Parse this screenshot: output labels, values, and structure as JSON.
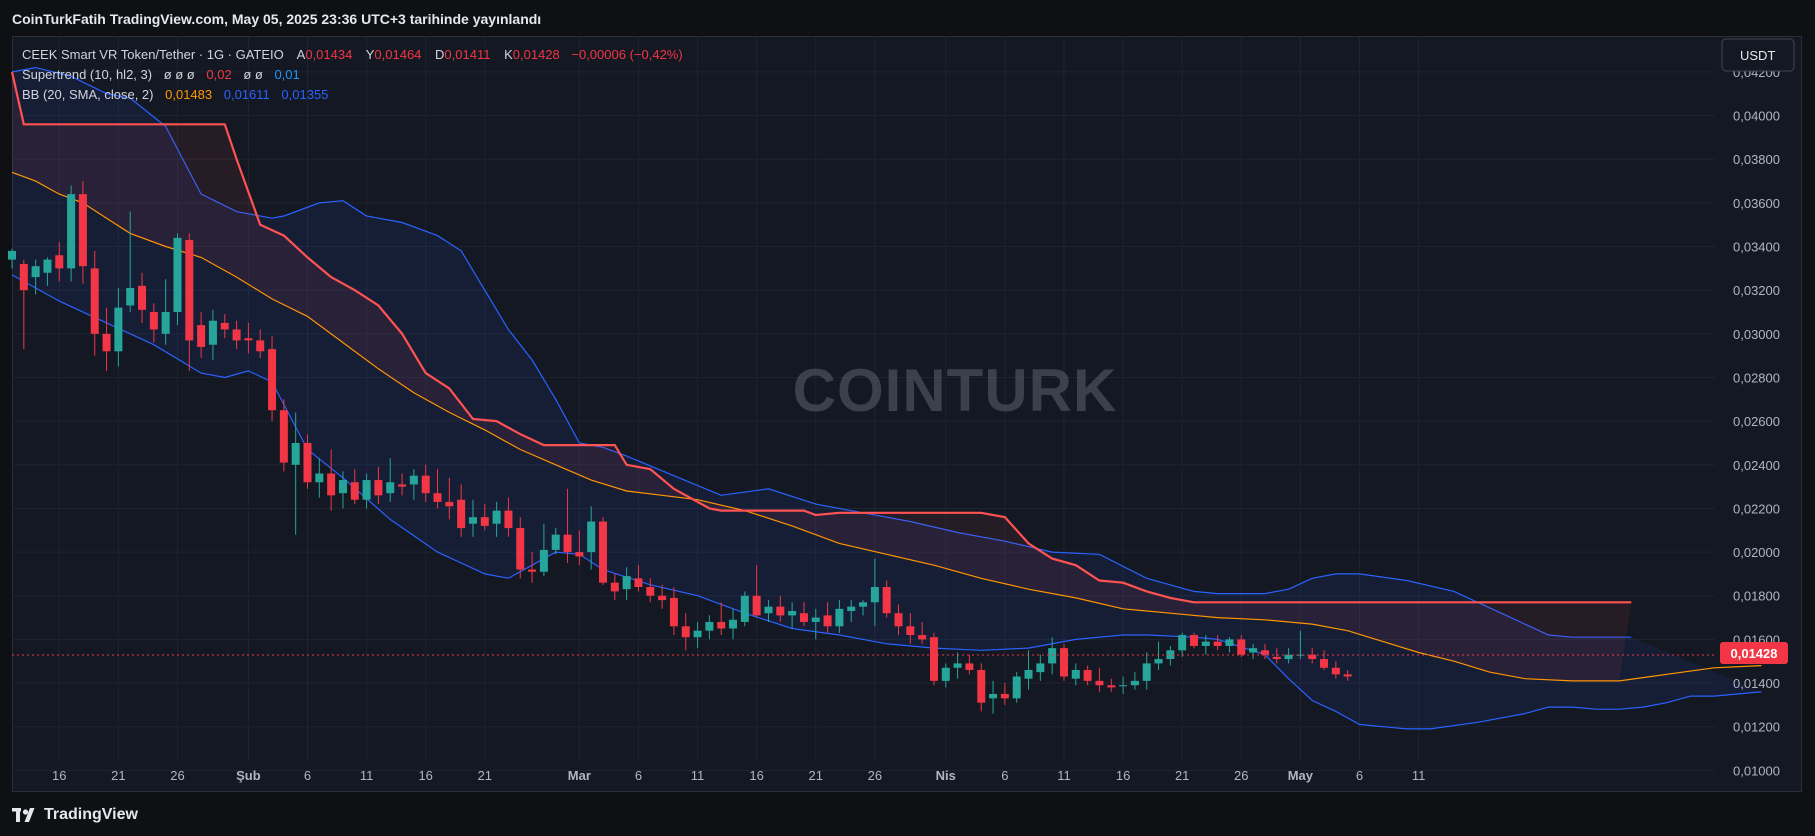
{
  "header": {
    "published_line": "CoinTurkFatih TradingView.com, May 05, 2025 23:36 UTC+3 tarihinde yayınlandı"
  },
  "legend": {
    "symbol": "CEEK Smart VR Token/Tether · 1G · GATEIO",
    "open_label": "A",
    "open": "0,01434",
    "high_label": "Y",
    "high": "0,01464",
    "low_label": "D",
    "low": "0,01411",
    "close_label": "K",
    "close": "0,01428",
    "change": "−0,00006 (−0,42%)",
    "supertrend_label": "Supertrend (10, hl2, 3)",
    "supertrend_values": "ø  ø  ø",
    "supertrend_v1": "0,02",
    "supertrend_values2": "ø  ø",
    "supertrend_v2": "0,01",
    "bb_label": "BB (20, SMA, close, 2)",
    "bb_basis": "0,01483",
    "bb_upper": "0,01611",
    "bb_lower": "0,01355"
  },
  "currency_button": "USDT",
  "watermark": "COINTURK",
  "price_tag": "0,01428",
  "branding": "TradingView",
  "colors": {
    "up": "#26a69a",
    "down": "#f23645",
    "bb_basis": "#ff9800",
    "bb_band": "#2962ff",
    "supertrend": "#ff5252",
    "background": "#141823"
  },
  "chart_data": {
    "type": "candlestick",
    "y_ticks": [
      "0,04200",
      "0,04000",
      "0,03800",
      "0,03600",
      "0,03400",
      "0,03200",
      "0,03000",
      "0,02800",
      "0,02600",
      "0,02400",
      "0,02200",
      "0,02000",
      "0,01800",
      "0,01600",
      "0,01400",
      "0,01200",
      "0,01000"
    ],
    "ylim": [
      0.0091,
      0.0436
    ],
    "x_tick_labels": [
      "16",
      "21",
      "26",
      "Şub",
      "6",
      "11",
      "16",
      "21",
      "Mar",
      "6",
      "11",
      "16",
      "21",
      "26",
      "Nis",
      "6",
      "11",
      "16",
      "21",
      "26",
      "May",
      "6",
      "11"
    ],
    "x_tick_dates": [
      "2025-01-16",
      "2025-01-21",
      "2025-01-26",
      "2025-02-01",
      "2025-02-06",
      "2025-02-11",
      "2025-02-16",
      "2025-02-21",
      "2025-03-01",
      "2025-03-06",
      "2025-03-11",
      "2025-03-16",
      "2025-03-21",
      "2025-03-26",
      "2025-04-01",
      "2025-04-06",
      "2025-04-11",
      "2025-04-16",
      "2025-04-21",
      "2025-04-26",
      "2025-05-01",
      "2025-05-06",
      "2025-05-11"
    ],
    "first_date": "2025-01-12",
    "last_date": "2025-05-05",
    "candles_ohlc": [
      [
        0.0334,
        0.0339,
        0.033,
        0.0338
      ],
      [
        0.0332,
        0.0334,
        0.0293,
        0.032
      ],
      [
        0.0326,
        0.0334,
        0.0318,
        0.0331
      ],
      [
        0.0328,
        0.0335,
        0.0322,
        0.0334
      ],
      [
        0.0336,
        0.0342,
        0.0324,
        0.033
      ],
      [
        0.033,
        0.0368,
        0.0324,
        0.0364
      ],
      [
        0.0364,
        0.037,
        0.0323,
        0.0331
      ],
      [
        0.033,
        0.0338,
        0.029,
        0.03
      ],
      [
        0.03,
        0.0312,
        0.0283,
        0.0292
      ],
      [
        0.0292,
        0.0321,
        0.0285,
        0.0312
      ],
      [
        0.0313,
        0.0356,
        0.031,
        0.0321
      ],
      [
        0.0322,
        0.0328,
        0.0305,
        0.0311
      ],
      [
        0.031,
        0.0314,
        0.0296,
        0.0302
      ],
      [
        0.03,
        0.0325,
        0.0295,
        0.031
      ],
      [
        0.031,
        0.0346,
        0.0304,
        0.0344
      ],
      [
        0.0343,
        0.0346,
        0.0283,
        0.0297
      ],
      [
        0.0304,
        0.031,
        0.0289,
        0.0294
      ],
      [
        0.0295,
        0.0311,
        0.0288,
        0.0306
      ],
      [
        0.0305,
        0.0309,
        0.0298,
        0.0302
      ],
      [
        0.0302,
        0.0306,
        0.0293,
        0.0297
      ],
      [
        0.0298,
        0.0305,
        0.0291,
        0.0297
      ],
      [
        0.0297,
        0.0302,
        0.0289,
        0.0292
      ],
      [
        0.0293,
        0.0299,
        0.026,
        0.0265
      ],
      [
        0.0265,
        0.027,
        0.0237,
        0.0241
      ],
      [
        0.024,
        0.0264,
        0.0208,
        0.025
      ],
      [
        0.025,
        0.0254,
        0.0229,
        0.0232
      ],
      [
        0.0232,
        0.0243,
        0.0225,
        0.0236
      ],
      [
        0.0236,
        0.0247,
        0.0219,
        0.0226
      ],
      [
        0.0227,
        0.0237,
        0.022,
        0.0233
      ],
      [
        0.0232,
        0.0238,
        0.0222,
        0.0224
      ],
      [
        0.0224,
        0.0236,
        0.022,
        0.0233
      ],
      [
        0.0233,
        0.0239,
        0.0222,
        0.0226
      ],
      [
        0.0227,
        0.0243,
        0.0223,
        0.0232
      ],
      [
        0.0231,
        0.0236,
        0.0226,
        0.023
      ],
      [
        0.0231,
        0.0238,
        0.0224,
        0.0235
      ],
      [
        0.0235,
        0.024,
        0.0223,
        0.0227
      ],
      [
        0.0227,
        0.0238,
        0.022,
        0.0223
      ],
      [
        0.0223,
        0.0234,
        0.0215,
        0.0221
      ],
      [
        0.0224,
        0.0231,
        0.0207,
        0.0211
      ],
      [
        0.0213,
        0.0224,
        0.0207,
        0.0216
      ],
      [
        0.0216,
        0.0222,
        0.021,
        0.0212
      ],
      [
        0.0213,
        0.0223,
        0.0207,
        0.0219
      ],
      [
        0.0219,
        0.0225,
        0.0207,
        0.0211
      ],
      [
        0.0211,
        0.0216,
        0.0188,
        0.0192
      ],
      [
        0.0192,
        0.02,
        0.0186,
        0.0191
      ],
      [
        0.0191,
        0.0213,
        0.0189,
        0.0201
      ],
      [
        0.0201,
        0.0211,
        0.0199,
        0.0208
      ],
      [
        0.0208,
        0.0229,
        0.0195,
        0.02
      ],
      [
        0.02,
        0.021,
        0.0194,
        0.0198
      ],
      [
        0.02,
        0.0221,
        0.0192,
        0.0214
      ],
      [
        0.0214,
        0.0216,
        0.0185,
        0.0186
      ],
      [
        0.0186,
        0.019,
        0.0178,
        0.0182
      ],
      [
        0.0183,
        0.0193,
        0.0178,
        0.0189
      ],
      [
        0.0188,
        0.0194,
        0.0182,
        0.0184
      ],
      [
        0.0184,
        0.0188,
        0.0177,
        0.018
      ],
      [
        0.018,
        0.0185,
        0.0174,
        0.0178
      ],
      [
        0.0179,
        0.0184,
        0.0162,
        0.0166
      ],
      [
        0.0166,
        0.0172,
        0.0155,
        0.0161
      ],
      [
        0.0161,
        0.0168,
        0.0156,
        0.0164
      ],
      [
        0.0164,
        0.0171,
        0.016,
        0.0168
      ],
      [
        0.0168,
        0.0177,
        0.0162,
        0.0165
      ],
      [
        0.0165,
        0.0174,
        0.016,
        0.0169
      ],
      [
        0.0168,
        0.0182,
        0.0166,
        0.018
      ],
      [
        0.018,
        0.0194,
        0.017,
        0.0171
      ],
      [
        0.0172,
        0.0178,
        0.0168,
        0.0175
      ],
      [
        0.0175,
        0.018,
        0.0168,
        0.0171
      ],
      [
        0.0171,
        0.0177,
        0.0165,
        0.0173
      ],
      [
        0.0172,
        0.0177,
        0.0166,
        0.0168
      ],
      [
        0.0168,
        0.0174,
        0.016,
        0.017
      ],
      [
        0.0171,
        0.0177,
        0.0163,
        0.0166
      ],
      [
        0.0166,
        0.0178,
        0.0163,
        0.0174
      ],
      [
        0.0173,
        0.0178,
        0.0168,
        0.0175
      ],
      [
        0.0175,
        0.0178,
        0.0171,
        0.0177
      ],
      [
        0.0177,
        0.0197,
        0.0166,
        0.0184
      ],
      [
        0.0184,
        0.0187,
        0.017,
        0.0172
      ],
      [
        0.0172,
        0.0176,
        0.0162,
        0.0166
      ],
      [
        0.0166,
        0.0172,
        0.0158,
        0.0162
      ],
      [
        0.0162,
        0.0168,
        0.0158,
        0.016
      ],
      [
        0.0161,
        0.0163,
        0.0139,
        0.0141
      ],
      [
        0.0141,
        0.0149,
        0.0138,
        0.0147
      ],
      [
        0.0147,
        0.0154,
        0.0142,
        0.0149
      ],
      [
        0.0149,
        0.0153,
        0.0144,
        0.0146
      ],
      [
        0.0146,
        0.0149,
        0.0127,
        0.0131
      ],
      [
        0.0133,
        0.0141,
        0.0126,
        0.0135
      ],
      [
        0.0135,
        0.014,
        0.013,
        0.0133
      ],
      [
        0.0133,
        0.0145,
        0.0131,
        0.0143
      ],
      [
        0.0142,
        0.0155,
        0.0137,
        0.0146
      ],
      [
        0.0145,
        0.0153,
        0.0141,
        0.0149
      ],
      [
        0.0149,
        0.0161,
        0.0144,
        0.0156
      ],
      [
        0.0156,
        0.0158,
        0.0141,
        0.0143
      ],
      [
        0.0142,
        0.0149,
        0.0139,
        0.0146
      ],
      [
        0.0146,
        0.0148,
        0.0139,
        0.0141
      ],
      [
        0.0141,
        0.0147,
        0.0136,
        0.0139
      ],
      [
        0.0139,
        0.0142,
        0.0136,
        0.0138
      ],
      [
        0.0139,
        0.0143,
        0.0135,
        0.0139
      ],
      [
        0.0139,
        0.0145,
        0.0137,
        0.0141
      ],
      [
        0.0141,
        0.0154,
        0.0137,
        0.0149
      ],
      [
        0.0149,
        0.0159,
        0.0146,
        0.0151
      ],
      [
        0.0151,
        0.0157,
        0.0148,
        0.0155
      ],
      [
        0.0155,
        0.0163,
        0.0152,
        0.0162
      ],
      [
        0.0162,
        0.0163,
        0.0156,
        0.0157
      ],
      [
        0.0157,
        0.0162,
        0.0153,
        0.0159
      ],
      [
        0.0159,
        0.0162,
        0.0155,
        0.0157
      ],
      [
        0.0157,
        0.0161,
        0.0154,
        0.016
      ],
      [
        0.016,
        0.0162,
        0.0152,
        0.0153
      ],
      [
        0.0154,
        0.0158,
        0.0151,
        0.0156
      ],
      [
        0.0155,
        0.0158,
        0.0151,
        0.0153
      ],
      [
        0.0152,
        0.0156,
        0.0149,
        0.0151
      ],
      [
        0.0151,
        0.0156,
        0.0149,
        0.0153
      ],
      [
        0.0153,
        0.0164,
        0.0151,
        0.0153
      ],
      [
        0.0153,
        0.0156,
        0.0149,
        0.0151
      ],
      [
        0.0151,
        0.0155,
        0.0146,
        0.0147
      ],
      [
        0.0147,
        0.015,
        0.0142,
        0.0144
      ],
      [
        0.0144,
        0.0146,
        0.0141,
        0.0143
      ]
    ],
    "bb_upper": [
      [
        0,
        0.042
      ],
      [
        2,
        0.0422
      ],
      [
        5,
        0.0418
      ],
      [
        8,
        0.041
      ],
      [
        10,
        0.0408
      ],
      [
        13,
        0.0395
      ],
      [
        16,
        0.0364
      ],
      [
        19,
        0.0356
      ],
      [
        22,
        0.0353
      ],
      [
        23,
        0.0354
      ],
      [
        26,
        0.036
      ],
      [
        28,
        0.0361
      ],
      [
        30,
        0.0354
      ],
      [
        33,
        0.0351
      ],
      [
        36,
        0.0345
      ],
      [
        38,
        0.0338
      ],
      [
        40,
        0.032
      ],
      [
        42,
        0.0302
      ],
      [
        44,
        0.0288
      ],
      [
        46,
        0.027
      ],
      [
        48,
        0.025
      ],
      [
        50,
        0.0248
      ],
      [
        52,
        0.0244
      ],
      [
        56,
        0.0235
      ],
      [
        60,
        0.0226
      ],
      [
        64,
        0.0229
      ],
      [
        68,
        0.0222
      ],
      [
        72,
        0.0218
      ],
      [
        76,
        0.0214
      ],
      [
        80,
        0.0209
      ],
      [
        84,
        0.0205
      ],
      [
        88,
        0.02
      ],
      [
        92,
        0.0199
      ],
      [
        96,
        0.0188
      ],
      [
        100,
        0.0182
      ],
      [
        102,
        0.0181
      ],
      [
        106,
        0.0181
      ],
      [
        108,
        0.0183
      ],
      [
        110,
        0.0188
      ],
      [
        112,
        0.019
      ],
      [
        114,
        0.019
      ],
      [
        118,
        0.0187
      ],
      [
        122,
        0.0182
      ],
      [
        126,
        0.0172
      ],
      [
        130,
        0.0162
      ],
      [
        132,
        0.0161
      ],
      [
        135,
        0.0161
      ],
      [
        137,
        0.0161
      ]
    ],
    "bb_lower": [
      [
        0,
        0.0327
      ],
      [
        4,
        0.0315
      ],
      [
        8,
        0.0305
      ],
      [
        12,
        0.0295
      ],
      [
        16,
        0.0282
      ],
      [
        18,
        0.028
      ],
      [
        20,
        0.0283
      ],
      [
        22,
        0.0278
      ],
      [
        25,
        0.0247
      ],
      [
        28,
        0.0234
      ],
      [
        32,
        0.0215
      ],
      [
        36,
        0.02
      ],
      [
        38,
        0.0195
      ],
      [
        40,
        0.019
      ],
      [
        42,
        0.0188
      ],
      [
        44,
        0.0194
      ],
      [
        46,
        0.02
      ],
      [
        48,
        0.0199
      ],
      [
        50,
        0.0192
      ],
      [
        54,
        0.0185
      ],
      [
        58,
        0.018
      ],
      [
        62,
        0.0172
      ],
      [
        66,
        0.0165
      ],
      [
        70,
        0.0162
      ],
      [
        74,
        0.0158
      ],
      [
        78,
        0.0156
      ],
      [
        82,
        0.0155
      ],
      [
        86,
        0.0156
      ],
      [
        90,
        0.016
      ],
      [
        94,
        0.0162
      ],
      [
        96,
        0.0162
      ],
      [
        100,
        0.0161
      ],
      [
        102,
        0.016
      ],
      [
        106,
        0.0153
      ],
      [
        108,
        0.0142
      ],
      [
        110,
        0.0132
      ],
      [
        112,
        0.0127
      ],
      [
        114,
        0.0121
      ],
      [
        118,
        0.0119
      ],
      [
        120,
        0.0119
      ],
      [
        124,
        0.0122
      ],
      [
        128,
        0.0126
      ],
      [
        130,
        0.0129
      ],
      [
        132,
        0.0129
      ],
      [
        134,
        0.0128
      ],
      [
        136,
        0.0128
      ],
      [
        138,
        0.0129
      ],
      [
        140,
        0.0131
      ],
      [
        142,
        0.0134
      ],
      [
        144,
        0.0134
      ],
      [
        146,
        0.0135
      ],
      [
        148,
        0.0136
      ]
    ],
    "bb_basis": [
      [
        0,
        0.0374
      ],
      [
        2,
        0.037
      ],
      [
        4,
        0.0364
      ],
      [
        6,
        0.036
      ],
      [
        8,
        0.0353
      ],
      [
        10,
        0.0346
      ],
      [
        13,
        0.034
      ],
      [
        16,
        0.0335
      ],
      [
        19,
        0.0326
      ],
      [
        22,
        0.0316
      ],
      [
        25,
        0.0308
      ],
      [
        28,
        0.0296
      ],
      [
        31,
        0.0284
      ],
      [
        34,
        0.0273
      ],
      [
        37,
        0.0264
      ],
      [
        40,
        0.0256
      ],
      [
        43,
        0.0247
      ],
      [
        46,
        0.024
      ],
      [
        49,
        0.0233
      ],
      [
        52,
        0.0228
      ],
      [
        55,
        0.0226
      ],
      [
        58,
        0.0224
      ],
      [
        62,
        0.0219
      ],
      [
        66,
        0.0212
      ],
      [
        70,
        0.0204
      ],
      [
        74,
        0.0199
      ],
      [
        78,
        0.0194
      ],
      [
        82,
        0.0188
      ],
      [
        86,
        0.0183
      ],
      [
        90,
        0.0179
      ],
      [
        94,
        0.0174
      ],
      [
        98,
        0.0172
      ],
      [
        102,
        0.017
      ],
      [
        106,
        0.0169
      ],
      [
        110,
        0.0167
      ],
      [
        113,
        0.0164
      ],
      [
        116,
        0.0159
      ],
      [
        119,
        0.0154
      ],
      [
        122,
        0.015
      ],
      [
        125,
        0.0145
      ],
      [
        128,
        0.0142
      ],
      [
        132,
        0.0141
      ],
      [
        136,
        0.0141
      ],
      [
        140,
        0.0144
      ],
      [
        144,
        0.0147
      ],
      [
        148,
        0.0148
      ]
    ],
    "supertrend": [
      [
        0,
        0.042
      ],
      [
        1,
        0.0396
      ],
      [
        18,
        0.0396
      ],
      [
        19,
        0.038
      ],
      [
        21,
        0.035
      ],
      [
        23,
        0.0345
      ],
      [
        25,
        0.0335
      ],
      [
        27,
        0.0326
      ],
      [
        29,
        0.032
      ],
      [
        31,
        0.0313
      ],
      [
        33,
        0.03
      ],
      [
        35,
        0.0282
      ],
      [
        37,
        0.0275
      ],
      [
        39,
        0.0261
      ],
      [
        41,
        0.026
      ],
      [
        43,
        0.0254
      ],
      [
        45,
        0.0249
      ],
      [
        51,
        0.0249
      ],
      [
        52,
        0.024
      ],
      [
        54,
        0.0238
      ],
      [
        56,
        0.0229
      ],
      [
        58,
        0.0223
      ],
      [
        59,
        0.022
      ],
      [
        60,
        0.0219
      ],
      [
        67,
        0.0219
      ],
      [
        68,
        0.0217
      ],
      [
        70,
        0.0218
      ],
      [
        82,
        0.0218
      ],
      [
        84,
        0.0216
      ],
      [
        86,
        0.0204
      ],
      [
        88,
        0.0197
      ],
      [
        90,
        0.0194
      ],
      [
        92,
        0.0187
      ],
      [
        94,
        0.0186
      ],
      [
        96,
        0.0182
      ],
      [
        98,
        0.0179
      ],
      [
        100,
        0.0177
      ],
      [
        137,
        0.0177
      ]
    ],
    "last_price": 0.01428
  }
}
